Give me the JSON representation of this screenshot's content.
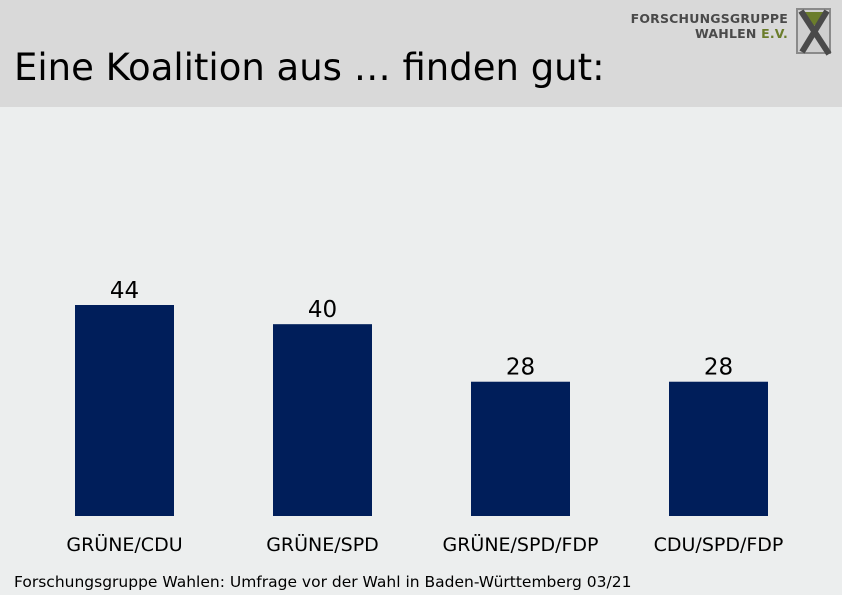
{
  "header": {
    "title": "Eine Koalition aus … finden gut:",
    "logo": {
      "line1": "FORSCHUNGSGRUPPE",
      "line2_main": "WAHLEN",
      "line2_accent": "E.V.",
      "icon": "fgw-x-logo-icon"
    }
  },
  "chart_data": {
    "type": "bar",
    "categories": [
      "GRÜNE/CDU",
      "GRÜNE/SPD",
      "GRÜNE/SPD/FDP",
      "CDU/SPD/FDP"
    ],
    "values": [
      44,
      40,
      28,
      28
    ],
    "title": "Eine Koalition aus … finden gut:",
    "xlabel": "",
    "ylabel": "",
    "ylim": [
      0,
      44
    ],
    "grid": false,
    "bar_color": "#001e5a"
  },
  "footer": {
    "source": "Forschungsgruppe Wahlen: Umfrage vor der Wahl in Baden-Württemberg 03/21"
  },
  "colors": {
    "background": "#eceeee",
    "header_bg": "#d9d9d9",
    "bar": "#001e5a",
    "logo_accent": "#6b7d2b"
  }
}
